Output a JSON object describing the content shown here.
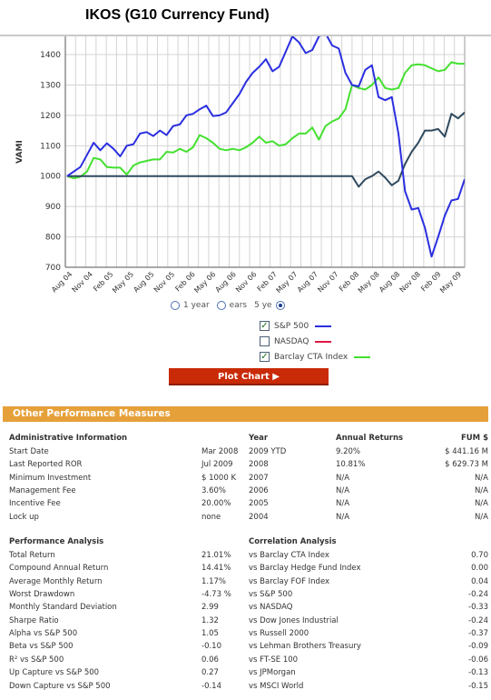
{
  "page_title": "IKOS (G10 Currency Fund)",
  "chart_data": {
    "type": "line",
    "ylabel": "VAMI",
    "ylim": [
      700,
      1460
    ],
    "yticks": [
      700,
      800,
      900,
      1000,
      1100,
      1200,
      1300,
      1400
    ],
    "xtick_labels": [
      "Aug 04",
      "Nov 04",
      "Feb 05",
      "May 05",
      "Aug 05",
      "Nov 05",
      "Feb 06",
      "May 06",
      "Aug 06",
      "Nov 06",
      "Feb 07",
      "May 07",
      "Aug 07",
      "Nov 07",
      "Feb 08",
      "May 08",
      "Aug 08",
      "Nov 08",
      "Feb 09",
      "May 09"
    ],
    "grid": true,
    "series": [
      {
        "name": "S&P 500",
        "color": "#2b2fe0",
        "values": [
          1000,
          1015,
          1030,
          1070,
          1110,
          1085,
          1108,
          1090,
          1065,
          1100,
          1105,
          1140,
          1145,
          1132,
          1150,
          1135,
          1165,
          1170,
          1200,
          1205,
          1220,
          1232,
          1198,
          1200,
          1210,
          1240,
          1270,
          1310,
          1340,
          1360,
          1385,
          1345,
          1360,
          1410,
          1460,
          1440,
          1405,
          1415,
          1460,
          1470,
          1430,
          1420,
          1340,
          1300,
          1295,
          1350,
          1365,
          1260,
          1250,
          1260,
          1140,
          950,
          890,
          895,
          830,
          735,
          800,
          870,
          920,
          925,
          990
        ]
      },
      {
        "name": "NASDAQ",
        "color": "#e01845",
        "values": []
      },
      {
        "name": "Barclay CTA Index",
        "color": "#44e030",
        "values": [
          1000,
          993,
          998,
          1015,
          1060,
          1055,
          1030,
          1028,
          1028,
          1005,
          1035,
          1045,
          1050,
          1055,
          1055,
          1080,
          1078,
          1090,
          1080,
          1095,
          1135,
          1125,
          1110,
          1090,
          1085,
          1090,
          1085,
          1095,
          1110,
          1130,
          1110,
          1115,
          1100,
          1105,
          1125,
          1140,
          1140,
          1160,
          1120,
          1165,
          1180,
          1190,
          1220,
          1300,
          1290,
          1285,
          1300,
          1325,
          1290,
          1285,
          1290,
          1340,
          1365,
          1368,
          1365,
          1355,
          1345,
          1350,
          1375,
          1370,
          1370
        ]
      },
      {
        "name": "IKOS (G10 Currency Fund)",
        "color": "#2f4a5f",
        "values": [
          1000,
          1000,
          1000,
          1000,
          1000,
          1000,
          1000,
          1000,
          1000,
          1000,
          1000,
          1000,
          1000,
          1000,
          1000,
          1000,
          1000,
          1000,
          1000,
          1000,
          1000,
          1000,
          1000,
          1000,
          1000,
          1000,
          1000,
          1000,
          1000,
          1000,
          1000,
          1000,
          1000,
          1000,
          1000,
          1000,
          1000,
          1000,
          1000,
          1000,
          1000,
          1000,
          1000,
          1000,
          965,
          990,
          1000,
          1015,
          995,
          970,
          985,
          1040,
          1080,
          1110,
          1150,
          1150,
          1155,
          1130,
          1205,
          1190,
          1210
        ]
      }
    ]
  },
  "controls": {
    "period_1year": "1 year",
    "period_3years": "ears",
    "period_5years": "5 ye",
    "plot_button": "Plot Chart ▶"
  },
  "legend": [
    {
      "label": "S&P 500",
      "checked": true,
      "color": "#2b2fe0"
    },
    {
      "label": "NASDAQ",
      "checked": false,
      "color": "#e01845"
    },
    {
      "label": "Barclay CTA Index",
      "checked": true,
      "color": "#44e030"
    }
  ],
  "other_measures": {
    "header": "Other Performance Measures",
    "admin": {
      "title": "Administrative Information",
      "rows": [
        {
          "label": "Start Date",
          "value": "Mar 2008"
        },
        {
          "label": "Last Reported ROR",
          "value": "Jul 2009"
        },
        {
          "label": "Minimum Investment",
          "value": "$ 1000 K"
        },
        {
          "label": "Management Fee",
          "value": "3.60%"
        },
        {
          "label": "Incentive Fee",
          "value": "20.00%"
        },
        {
          "label": "Lock up",
          "value": "none"
        }
      ]
    },
    "annual": {
      "headers": [
        "Year",
        "Annual Returns",
        "FUM $"
      ],
      "rows": [
        [
          "2009 YTD",
          "9.20%",
          "$ 441.16 M"
        ],
        [
          "2008",
          "10.81%",
          "$ 629.73 M"
        ],
        [
          "2007",
          "N/A",
          "N/A"
        ],
        [
          "2006",
          "N/A",
          "N/A"
        ],
        [
          "2005",
          "N/A",
          "N/A"
        ],
        [
          "2004",
          "N/A",
          "N/A"
        ]
      ]
    },
    "performance": {
      "title": "Performance Analysis",
      "rows": [
        {
          "label": "Total Return",
          "value": "21.01%"
        },
        {
          "label": "Compound Annual Return",
          "value": "14.41%"
        },
        {
          "label": "Average Monthly Return",
          "value": "1.17%"
        },
        {
          "label": "Worst Drawdown",
          "value": "-4.73 %"
        },
        {
          "label": "Monthly Standard Deviation",
          "value": "2.99"
        },
        {
          "label": "Sharpe Ratio",
          "value": "1.32"
        },
        {
          "label": "Alpha vs S&P 500",
          "value": "1.05"
        },
        {
          "label": "Beta vs S&P 500",
          "value": "-0.10"
        },
        {
          "label": "R² vs S&P 500",
          "value": "0.06"
        },
        {
          "label": "Up Capture vs S&P 500",
          "value": "0.27"
        },
        {
          "label": "Down Capture vs S&P 500",
          "value": "-0.14"
        }
      ]
    },
    "correlation": {
      "title": "Correlation Analysis",
      "rows": [
        {
          "label": "vs Barclay CTA Index",
          "value": "0.70"
        },
        {
          "label": "vs Barclay Hedge Fund Index",
          "value": "0.00"
        },
        {
          "label": "vs Barclay FOF Index",
          "value": "0.04"
        },
        {
          "label": "vs S&P 500",
          "value": "-0.24"
        },
        {
          "label": "vs NASDAQ",
          "value": "-0.33"
        },
        {
          "label": "vs Dow Jones Industrial",
          "value": "-0.24"
        },
        {
          "label": "vs Russell 2000",
          "value": "-0.37"
        },
        {
          "label": "vs Lehman Brothers Treasury",
          "value": "-0.09"
        },
        {
          "label": "vs FT-SE 100",
          "value": "-0.06"
        },
        {
          "label": "vs JPMorgan",
          "value": "-0.13"
        },
        {
          "label": "vs MSCI World",
          "value": "-0.15"
        }
      ]
    }
  }
}
